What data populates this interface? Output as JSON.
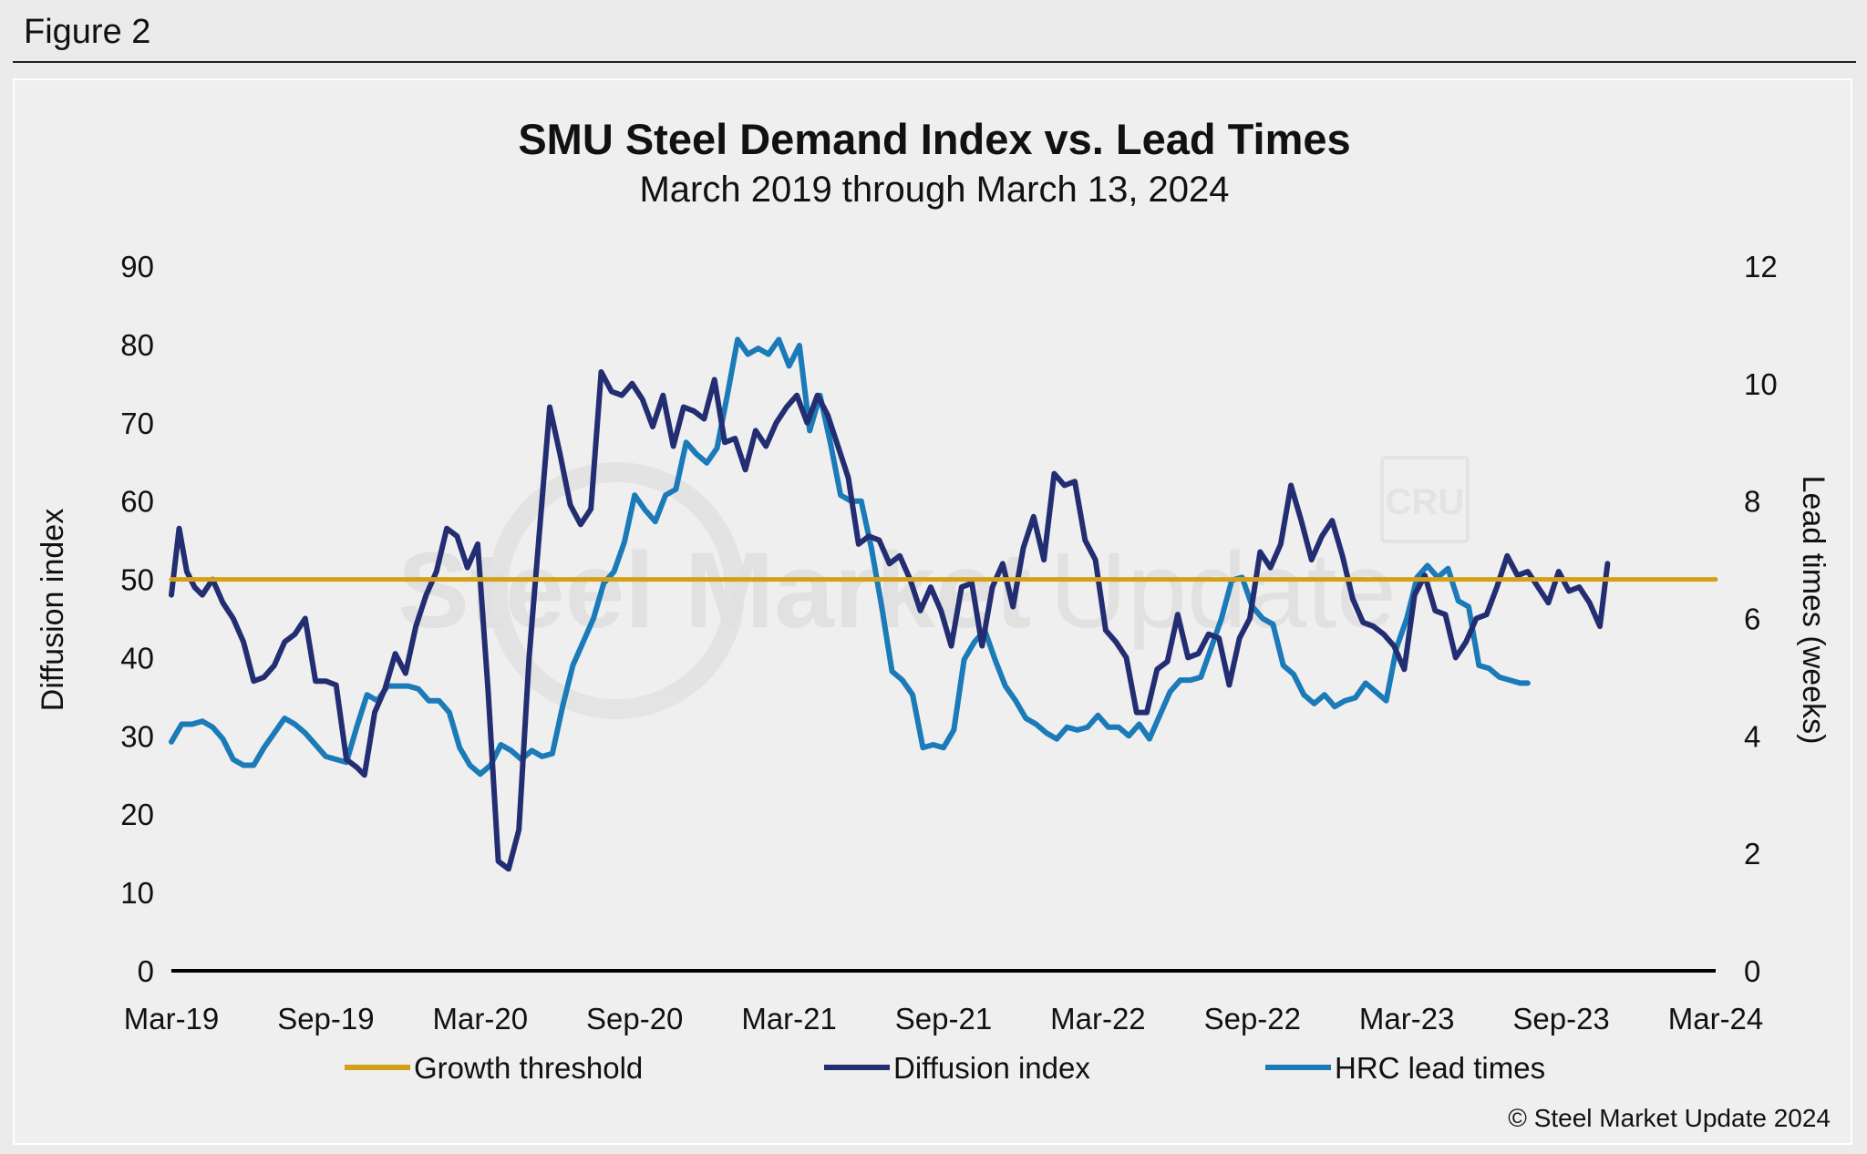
{
  "figure_label": "Figure 2",
  "copyright": "© Steel Market Update 2024",
  "watermark": {
    "brand_bold": "Steel Market",
    "brand_light": "Update",
    "badge": "CRU"
  },
  "colors": {
    "growth_threshold": "#d4a017",
    "diffusion_index": "#232e72",
    "hrc_lead_times": "#1b7ab8",
    "axis": "#000000",
    "background": "#efefef"
  },
  "chart_data": {
    "type": "line",
    "title": "SMU Steel Demand Index vs. Lead Times",
    "subtitle": "March 2019 through March 13, 2024",
    "ylabel": "Diffusion index",
    "y2label": "Lead times (weeks)",
    "ylim": [
      0,
      90
    ],
    "y2lim": [
      0,
      12
    ],
    "y_ticks": [
      "0",
      "10",
      "20",
      "30",
      "40",
      "50",
      "60",
      "70",
      "80",
      "90"
    ],
    "y2_ticks": [
      "0",
      "2",
      "4",
      "6",
      "8",
      "10",
      "12"
    ],
    "x_ticks": [
      "Mar-19",
      "Sep-19",
      "Mar-20",
      "Sep-20",
      "Mar-21",
      "Sep-21",
      "Mar-22",
      "Sep-22",
      "Mar-23",
      "Sep-23",
      "Mar-24"
    ],
    "x_range_months": [
      0,
      60
    ],
    "grid": false,
    "legend_position": "bottom",
    "series": [
      {
        "name": "Growth threshold",
        "axis": "left",
        "points": [
          [
            0,
            50
          ],
          [
            60,
            50
          ]
        ]
      },
      {
        "name": "Diffusion index",
        "axis": "left",
        "points": [
          [
            0,
            48
          ],
          [
            0.3,
            56.5
          ],
          [
            0.6,
            51
          ],
          [
            0.9,
            49
          ],
          [
            1.2,
            48
          ],
          [
            1.6,
            50
          ],
          [
            2.0,
            47
          ],
          [
            2.4,
            45
          ],
          [
            2.8,
            42
          ],
          [
            3.2,
            37
          ],
          [
            3.6,
            37.5
          ],
          [
            4.0,
            39
          ],
          [
            4.4,
            42
          ],
          [
            4.8,
            43
          ],
          [
            5.2,
            45
          ],
          [
            5.6,
            37
          ],
          [
            6.0,
            37
          ],
          [
            6.4,
            36.5
          ],
          [
            6.8,
            27
          ],
          [
            7.2,
            26
          ],
          [
            7.5,
            25
          ],
          [
            7.9,
            33
          ],
          [
            8.3,
            36
          ],
          [
            8.7,
            40.5
          ],
          [
            9.1,
            38
          ],
          [
            9.5,
            44
          ],
          [
            9.9,
            48
          ],
          [
            10.3,
            51
          ],
          [
            10.7,
            56.5
          ],
          [
            11.1,
            55.5
          ],
          [
            11.5,
            51.5
          ],
          [
            11.9,
            54.5
          ],
          [
            12.3,
            36
          ],
          [
            12.7,
            14
          ],
          [
            13.1,
            13
          ],
          [
            13.5,
            18
          ],
          [
            13.9,
            40
          ],
          [
            14.3,
            56
          ],
          [
            14.7,
            72
          ],
          [
            15.1,
            66
          ],
          [
            15.5,
            59.5
          ],
          [
            15.9,
            57
          ],
          [
            16.3,
            59
          ],
          [
            16.7,
            76.5
          ],
          [
            17.1,
            74
          ],
          [
            17.5,
            73.5
          ],
          [
            17.9,
            75
          ],
          [
            18.3,
            73
          ],
          [
            18.7,
            69.5
          ],
          [
            19.1,
            73.5
          ],
          [
            19.5,
            67
          ],
          [
            19.9,
            72
          ],
          [
            20.3,
            71.5
          ],
          [
            20.7,
            70.5
          ],
          [
            21.1,
            75.5
          ],
          [
            21.5,
            67.5
          ],
          [
            21.9,
            68
          ],
          [
            22.3,
            64
          ],
          [
            22.7,
            69
          ],
          [
            23.1,
            67
          ],
          [
            23.5,
            70
          ],
          [
            23.9,
            72
          ],
          [
            24.3,
            73.5
          ],
          [
            24.7,
            70
          ],
          [
            25.1,
            73.5
          ],
          [
            25.5,
            71
          ],
          [
            25.9,
            67
          ],
          [
            26.3,
            63
          ],
          [
            26.7,
            54.5
          ],
          [
            27.1,
            55.5
          ],
          [
            27.5,
            55
          ],
          [
            27.9,
            52
          ],
          [
            28.3,
            53
          ],
          [
            28.7,
            50
          ],
          [
            29.1,
            46
          ],
          [
            29.5,
            49
          ],
          [
            29.9,
            46
          ],
          [
            30.3,
            41.5
          ],
          [
            30.7,
            49
          ],
          [
            31.1,
            49.5
          ],
          [
            31.5,
            41.5
          ],
          [
            31.9,
            49
          ],
          [
            32.3,
            52
          ],
          [
            32.7,
            46.5
          ],
          [
            33.1,
            54
          ],
          [
            33.5,
            58
          ],
          [
            33.9,
            52.5
          ],
          [
            34.3,
            63.5
          ],
          [
            34.7,
            62
          ],
          [
            35.1,
            62.5
          ],
          [
            35.5,
            55
          ],
          [
            35.9,
            52.5
          ],
          [
            36.3,
            43.5
          ],
          [
            36.7,
            42
          ],
          [
            37.1,
            40
          ],
          [
            37.5,
            33
          ],
          [
            37.9,
            33
          ],
          [
            38.3,
            38.5
          ],
          [
            38.7,
            39.5
          ],
          [
            39.1,
            45.5
          ],
          [
            39.5,
            40
          ],
          [
            39.9,
            40.5
          ],
          [
            40.3,
            43
          ],
          [
            40.7,
            42.5
          ],
          [
            41.1,
            36.5
          ],
          [
            41.5,
            42.5
          ],
          [
            41.9,
            45
          ],
          [
            42.3,
            53.5
          ],
          [
            42.7,
            51.5
          ],
          [
            43.1,
            54.5
          ],
          [
            43.5,
            62
          ],
          [
            43.9,
            57.5
          ],
          [
            44.3,
            52.5
          ],
          [
            44.7,
            55.5
          ],
          [
            45.1,
            57.5
          ],
          [
            45.5,
            53
          ],
          [
            45.9,
            47.5
          ],
          [
            46.3,
            44.5
          ],
          [
            46.7,
            44
          ],
          [
            47.1,
            43
          ],
          [
            47.5,
            41.5
          ],
          [
            47.9,
            38.5
          ],
          [
            48.3,
            48
          ],
          [
            48.7,
            50.5
          ],
          [
            49.1,
            46
          ],
          [
            49.5,
            45.5
          ],
          [
            49.9,
            40
          ],
          [
            50.3,
            42
          ],
          [
            50.7,
            45
          ],
          [
            51.1,
            45.5
          ],
          [
            51.5,
            49
          ],
          [
            51.9,
            53
          ],
          [
            52.3,
            50.5
          ],
          [
            52.7,
            51
          ],
          [
            53.1,
            49
          ],
          [
            53.5,
            47
          ],
          [
            53.9,
            51
          ],
          [
            54.3,
            48.5
          ],
          [
            54.7,
            49
          ],
          [
            55.1,
            47
          ],
          [
            55.5,
            44
          ],
          [
            55.8,
            52
          ]
        ]
      },
      {
        "name": "HRC lead times",
        "axis": "right",
        "points": [
          [
            0,
            3.9
          ],
          [
            0.4,
            4.2
          ],
          [
            0.8,
            4.2
          ],
          [
            1.2,
            4.25
          ],
          [
            1.6,
            4.15
          ],
          [
            2.0,
            3.95
          ],
          [
            2.4,
            3.6
          ],
          [
            2.8,
            3.5
          ],
          [
            3.2,
            3.5
          ],
          [
            3.6,
            3.8
          ],
          [
            4.0,
            4.05
          ],
          [
            4.4,
            4.3
          ],
          [
            4.8,
            4.2
          ],
          [
            5.2,
            4.05
          ],
          [
            5.6,
            3.85
          ],
          [
            6.0,
            3.65
          ],
          [
            6.4,
            3.6
          ],
          [
            6.8,
            3.55
          ],
          [
            7.2,
            4.15
          ],
          [
            7.6,
            4.7
          ],
          [
            8.0,
            4.6
          ],
          [
            8.4,
            4.85
          ],
          [
            8.8,
            4.85
          ],
          [
            9.2,
            4.85
          ],
          [
            9.6,
            4.8
          ],
          [
            10.0,
            4.6
          ],
          [
            10.4,
            4.6
          ],
          [
            10.8,
            4.4
          ],
          [
            11.2,
            3.8
          ],
          [
            11.6,
            3.5
          ],
          [
            12.0,
            3.35
          ],
          [
            12.4,
            3.5
          ],
          [
            12.8,
            3.85
          ],
          [
            13.2,
            3.75
          ],
          [
            13.6,
            3.6
          ],
          [
            14.0,
            3.75
          ],
          [
            14.4,
            3.65
          ],
          [
            14.8,
            3.7
          ],
          [
            15.2,
            4.5
          ],
          [
            15.6,
            5.2
          ],
          [
            16.0,
            5.6
          ],
          [
            16.4,
            6.0
          ],
          [
            16.8,
            6.6
          ],
          [
            17.2,
            6.8
          ],
          [
            17.6,
            7.3
          ],
          [
            18.0,
            8.1
          ],
          [
            18.4,
            7.85
          ],
          [
            18.8,
            7.65
          ],
          [
            19.2,
            8.1
          ],
          [
            19.6,
            8.2
          ],
          [
            20.0,
            9.0
          ],
          [
            20.4,
            8.8
          ],
          [
            20.8,
            8.65
          ],
          [
            21.2,
            8.9
          ],
          [
            21.6,
            9.8
          ],
          [
            22.0,
            10.75
          ],
          [
            22.4,
            10.5
          ],
          [
            22.8,
            10.6
          ],
          [
            23.2,
            10.5
          ],
          [
            23.6,
            10.75
          ],
          [
            24.0,
            10.3
          ],
          [
            24.4,
            10.65
          ],
          [
            24.8,
            9.2
          ],
          [
            25.2,
            9.8
          ],
          [
            25.6,
            9.0
          ],
          [
            26.0,
            8.1
          ],
          [
            26.4,
            8.0
          ],
          [
            26.8,
            8.0
          ],
          [
            27.2,
            7.2
          ],
          [
            27.6,
            6.2
          ],
          [
            28.0,
            5.1
          ],
          [
            28.4,
            4.95
          ],
          [
            28.8,
            4.7
          ],
          [
            29.2,
            3.8
          ],
          [
            29.6,
            3.85
          ],
          [
            30.0,
            3.8
          ],
          [
            30.4,
            4.1
          ],
          [
            30.8,
            5.3
          ],
          [
            31.2,
            5.6
          ],
          [
            31.6,
            5.8
          ],
          [
            32.0,
            5.3
          ],
          [
            32.4,
            4.85
          ],
          [
            32.8,
            4.6
          ],
          [
            33.2,
            4.3
          ],
          [
            33.6,
            4.2
          ],
          [
            34.0,
            4.05
          ],
          [
            34.4,
            3.95
          ],
          [
            34.8,
            4.15
          ],
          [
            35.2,
            4.1
          ],
          [
            35.6,
            4.15
          ],
          [
            36.0,
            4.35
          ],
          [
            36.4,
            4.15
          ],
          [
            36.8,
            4.15
          ],
          [
            37.2,
            4.0
          ],
          [
            37.6,
            4.2
          ],
          [
            38.0,
            3.95
          ],
          [
            38.4,
            4.35
          ],
          [
            38.8,
            4.75
          ],
          [
            39.2,
            4.95
          ],
          [
            39.6,
            4.95
          ],
          [
            40.0,
            5.0
          ],
          [
            40.4,
            5.5
          ],
          [
            40.8,
            6.0
          ],
          [
            41.2,
            6.65
          ],
          [
            41.6,
            6.7
          ],
          [
            42.0,
            6.2
          ],
          [
            42.4,
            6.0
          ],
          [
            42.8,
            5.9
          ],
          [
            43.2,
            5.2
          ],
          [
            43.6,
            5.05
          ],
          [
            44.0,
            4.7
          ],
          [
            44.4,
            4.55
          ],
          [
            44.8,
            4.7
          ],
          [
            45.2,
            4.5
          ],
          [
            45.6,
            4.6
          ],
          [
            46.0,
            4.65
          ],
          [
            46.4,
            4.9
          ],
          [
            46.8,
            4.75
          ],
          [
            47.2,
            4.6
          ],
          [
            47.6,
            5.5
          ],
          [
            48.0,
            6.0
          ],
          [
            48.4,
            6.7
          ],
          [
            48.8,
            6.9
          ],
          [
            49.2,
            6.7
          ],
          [
            49.6,
            6.85
          ],
          [
            50.0,
            6.3
          ],
          [
            50.4,
            6.2
          ],
          [
            50.8,
            5.2
          ],
          [
            51.2,
            5.15
          ],
          [
            51.6,
            5.0
          ],
          [
            52.0,
            4.95
          ],
          [
            52.4,
            4.9
          ],
          [
            52.7,
            4.9
          ]
        ]
      }
    ]
  }
}
